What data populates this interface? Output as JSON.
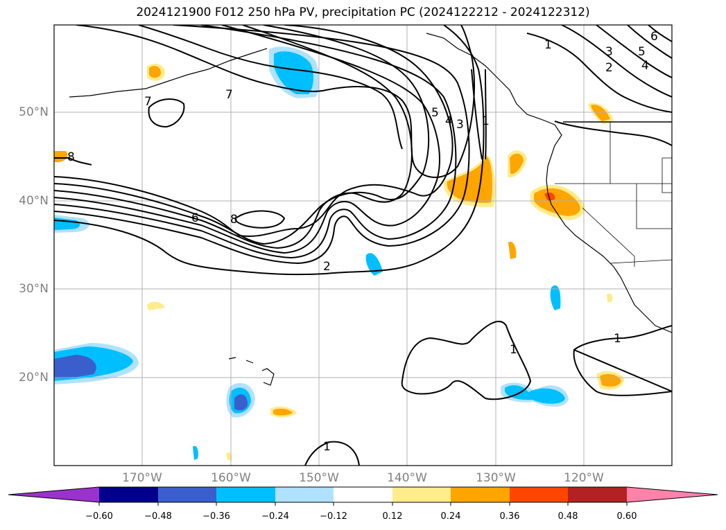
{
  "title": "2024121900 F012 250 hPa PV, precipitation PC (2024122212 - 2024122312)",
  "lat_labels": [
    "50°N",
    "40°N",
    "30°N",
    "20°N"
  ],
  "lon_labels": [
    "170°W",
    "160°W",
    "150°W",
    "140°W",
    "130°W",
    "120°W"
  ],
  "contour_labels": [
    "1",
    "2",
    "3",
    "4",
    "5",
    "6",
    "7",
    "8",
    "1",
    "2",
    "3",
    "4",
    "5",
    "7",
    "8",
    "1",
    "1",
    "1"
  ],
  "colorbar": {
    "colors": [
      "#9a32cd",
      "#00008b",
      "#3a5fcd",
      "#00bfff",
      "#b0e2ff",
      "#ffffff",
      "#ffec8b",
      "#ffa500",
      "#ff4500",
      "#b22222",
      "#ff82ab"
    ],
    "tick_labels": [
      "−0.60",
      "−0.48",
      "−0.36",
      "−0.24",
      "−0.12",
      "0.12",
      "0.24",
      "0.36",
      "0.48",
      "0.60"
    ]
  }
}
